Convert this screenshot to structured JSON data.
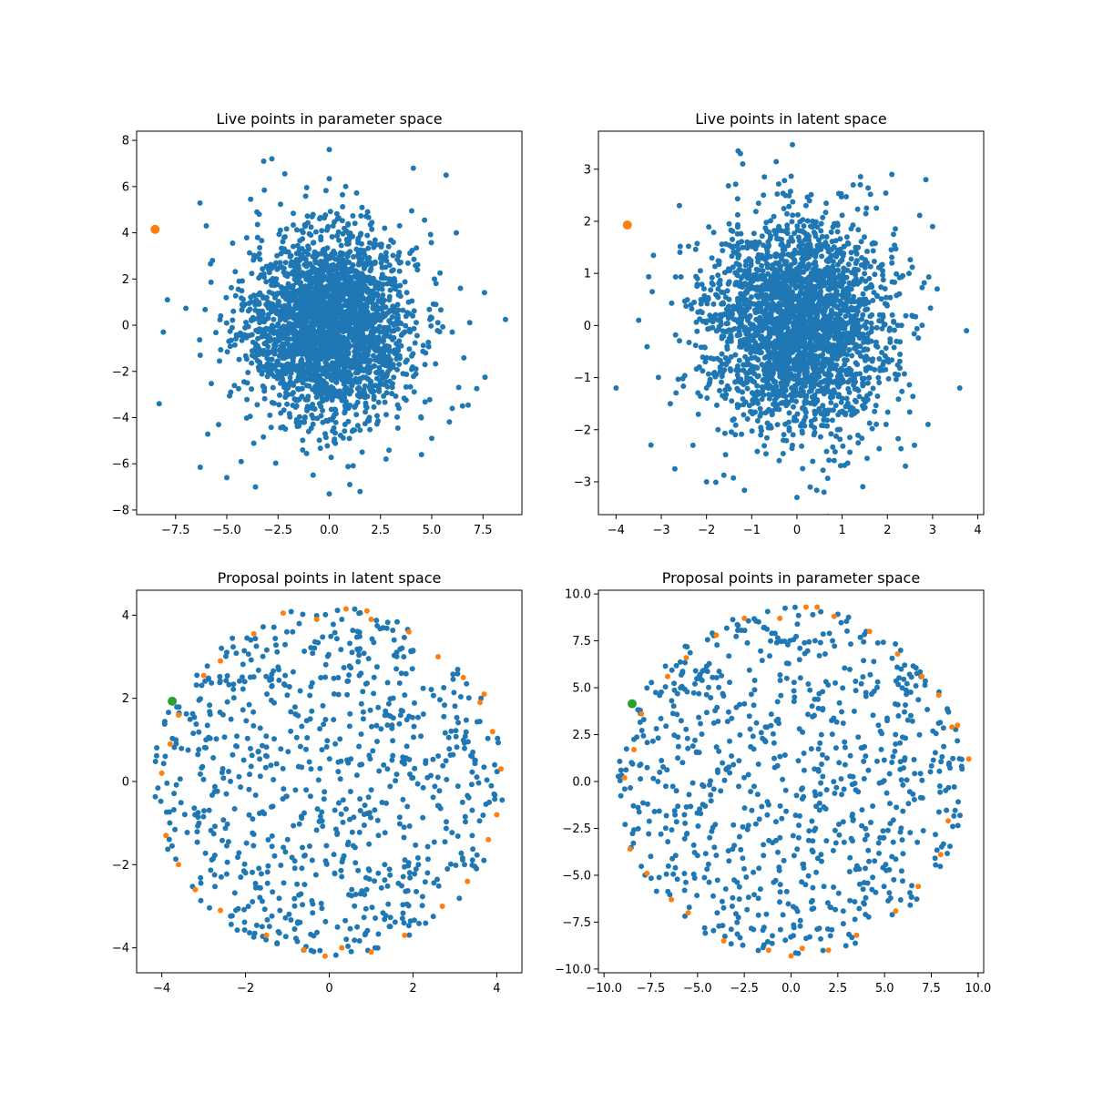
{
  "colors": {
    "live": "#1f77b4",
    "selected": "#ff7f0e",
    "boundary": "#ff7f0e",
    "seed": "#2ca02c"
  },
  "chart_data": [
    {
      "id": "live-param",
      "type": "scatter",
      "title": "Live points in parameter space",
      "xlim": [
        -9.4,
        9.4
      ],
      "ylim": [
        -8.2,
        8.4
      ],
      "xticks": [
        -7.5,
        -5.0,
        -2.5,
        0.0,
        2.5,
        5.0,
        7.5
      ],
      "xtick_labels": [
        "−7.5",
        "−5.0",
        "−2.5",
        "0.0",
        "2.5",
        "5.0",
        "7.5"
      ],
      "yticks": [
        -8,
        -6,
        -4,
        -2,
        0,
        2,
        4,
        6,
        8
      ],
      "ytick_labels": [
        "−8",
        "−6",
        "−4",
        "−2",
        "0",
        "2",
        "4",
        "6",
        "8"
      ],
      "bulk_points": {
        "distribution": "gaussian",
        "count": 2600,
        "mean": [
          0.0,
          0.0
        ],
        "std": [
          2.0,
          2.0
        ]
      },
      "points": [
        {
          "x": 0.5,
          "y": 0.4
        },
        {
          "x": -1.2,
          "y": 1.3
        },
        {
          "x": 1.4,
          "y": -1.1
        },
        {
          "x": -0.3,
          "y": -0.6
        },
        {
          "x": 0.9,
          "y": 1.8
        },
        {
          "x": -2.1,
          "y": -0.4
        },
        {
          "x": 2.3,
          "y": 0.7
        },
        {
          "x": -0.8,
          "y": 2.4
        },
        {
          "x": 0.2,
          "y": -2.2
        },
        {
          "x": 1.7,
          "y": 2.1
        },
        {
          "x": -1.9,
          "y": -1.7
        },
        {
          "x": 2.8,
          "y": -0.9
        },
        {
          "x": -3.0,
          "y": 1.0
        },
        {
          "x": 0.6,
          "y": 3.1
        },
        {
          "x": -0.4,
          "y": -3.0
        },
        {
          "x": 3.2,
          "y": 1.9
        },
        {
          "x": -2.6,
          "y": 2.7
        },
        {
          "x": 2.0,
          "y": -2.8
        },
        {
          "x": -3.4,
          "y": -1.6
        },
        {
          "x": 1.1,
          "y": 0.1
        },
        {
          "x": -1.5,
          "y": 0.3
        },
        {
          "x": 0.0,
          "y": 1.0
        },
        {
          "x": 0.3,
          "y": -1.3
        },
        {
          "x": -0.7,
          "y": 0.8
        },
        {
          "x": 1.3,
          "y": 0.9
        },
        {
          "x": -1.1,
          "y": -1.0
        },
        {
          "x": 2.5,
          "y": 2.9
        },
        {
          "x": -2.2,
          "y": 3.3
        },
        {
          "x": 3.6,
          "y": -2.1
        },
        {
          "x": -3.8,
          "y": 0.2
        },
        {
          "x": 0.8,
          "y": -3.6
        },
        {
          "x": -0.9,
          "y": 3.9
        },
        {
          "x": 3.9,
          "y": 0.5
        },
        {
          "x": -4.0,
          "y": -2.5
        },
        {
          "x": 1.9,
          "y": -4.1
        },
        {
          "x": -1.6,
          "y": -4.2
        },
        {
          "x": 4.3,
          "y": 2.4
        },
        {
          "x": -4.4,
          "y": 1.9
        },
        {
          "x": 0.4,
          "y": 4.6
        },
        {
          "x": -0.2,
          "y": -4.7
        },
        {
          "x": 4.7,
          "y": -1.2
        },
        {
          "x": -4.9,
          "y": -0.7
        },
        {
          "x": 2.7,
          "y": 4.2
        },
        {
          "x": -2.9,
          "y": -3.9
        },
        {
          "x": 3.4,
          "y": -3.6
        },
        {
          "x": -3.5,
          "y": 3.8
        },
        {
          "x": 5.2,
          "y": 0.9
        },
        {
          "x": -5.3,
          "y": 0.4
        },
        {
          "x": 1.6,
          "y": 5.1
        },
        {
          "x": -1.3,
          "y": -5.4
        },
        {
          "x": -8.5,
          "y": 4.15,
          "c": "selected",
          "r": 5
        },
        {
          "x": 0.0,
          "y": 7.6
        },
        {
          "x": -3.2,
          "y": 7.1
        },
        {
          "x": -2.8,
          "y": 7.2
        },
        {
          "x": 4.1,
          "y": 6.8
        },
        {
          "x": 5.7,
          "y": 6.5
        },
        {
          "x": 8.6,
          "y": 0.25
        },
        {
          "x": 7.6,
          "y": -2.25
        },
        {
          "x": -7.9,
          "y": 1.1
        },
        {
          "x": -8.1,
          "y": -0.3
        },
        {
          "x": -8.3,
          "y": -3.4
        },
        {
          "x": 0.0,
          "y": -7.3
        },
        {
          "x": -3.6,
          "y": -7.0
        },
        {
          "x": 1.5,
          "y": -7.2
        },
        {
          "x": 1.0,
          "y": -6.9
        },
        {
          "x": -5.0,
          "y": -6.6
        },
        {
          "x": 6.4,
          "y": 1.6
        },
        {
          "x": 6.5,
          "y": -3.5
        },
        {
          "x": -6.0,
          "y": 4.3
        },
        {
          "x": 6.2,
          "y": 4.0
        },
        {
          "x": -4.3,
          "y": -5.9
        },
        {
          "x": 4.5,
          "y": -5.6
        },
        {
          "x": -5.4,
          "y": -4.3
        },
        {
          "x": 5.0,
          "y": -4.9
        },
        {
          "x": -6.3,
          "y": -1.3
        },
        {
          "x": -5.7,
          "y": 2.8
        },
        {
          "x": 6.0,
          "y": -0.3
        }
      ]
    },
    {
      "id": "live-latent",
      "type": "scatter",
      "title": "Live points in latent space",
      "xlim": [
        -4.39,
        4.13
      ],
      "ylim": [
        -3.63,
        3.73
      ],
      "xticks": [
        -4,
        -3,
        -2,
        -1,
        0,
        1,
        2,
        3,
        4
      ],
      "xtick_labels": [
        "−4",
        "−3",
        "−2",
        "−1",
        "0",
        "1",
        "2",
        "3",
        "4"
      ],
      "yticks": [
        -3,
        -2,
        -1,
        0,
        1,
        2,
        3
      ],
      "ytick_labels": [
        "−3",
        "−2",
        "−1",
        "0",
        "1",
        "2",
        "3"
      ],
      "bulk_points": {
        "distribution": "gaussian",
        "count": 2600,
        "mean": [
          0.0,
          0.0
        ],
        "std": [
          1.0,
          1.0
        ]
      },
      "points": [
        {
          "x": 0.2,
          "y": 0.3
        },
        {
          "x": -0.6,
          "y": 0.7
        },
        {
          "x": 0.7,
          "y": -0.5
        },
        {
          "x": -0.2,
          "y": -0.3
        },
        {
          "x": 0.5,
          "y": 0.9
        },
        {
          "x": -1.0,
          "y": -0.2
        },
        {
          "x": 1.1,
          "y": 0.3
        },
        {
          "x": -0.4,
          "y": 1.2
        },
        {
          "x": 0.1,
          "y": -1.1
        },
        {
          "x": 0.8,
          "y": 1.0
        },
        {
          "x": -0.9,
          "y": -0.8
        },
        {
          "x": 1.4,
          "y": -0.4
        },
        {
          "x": -1.5,
          "y": 0.5
        },
        {
          "x": 0.3,
          "y": 1.5
        },
        {
          "x": -0.2,
          "y": -1.5
        },
        {
          "x": 1.6,
          "y": 0.9
        },
        {
          "x": -1.3,
          "y": 1.3
        },
        {
          "x": 1.0,
          "y": -1.4
        },
        {
          "x": -1.7,
          "y": -0.8
        },
        {
          "x": 0.5,
          "y": 0.0
        },
        {
          "x": -0.7,
          "y": 0.1
        },
        {
          "x": 0.0,
          "y": 0.5
        },
        {
          "x": 0.1,
          "y": -0.6
        },
        {
          "x": -0.3,
          "y": 0.4
        },
        {
          "x": 0.6,
          "y": 0.4
        },
        {
          "x": -0.5,
          "y": -0.5
        },
        {
          "x": 1.2,
          "y": 1.4
        },
        {
          "x": -1.1,
          "y": 1.6
        },
        {
          "x": 1.8,
          "y": -1.0
        },
        {
          "x": -1.9,
          "y": 0.1
        },
        {
          "x": 0.4,
          "y": -1.8
        },
        {
          "x": -0.4,
          "y": 1.9
        },
        {
          "x": 1.9,
          "y": 0.2
        },
        {
          "x": -2.0,
          "y": -1.2
        },
        {
          "x": 0.9,
          "y": -2.0
        },
        {
          "x": -0.8,
          "y": -2.1
        },
        {
          "x": 2.1,
          "y": 1.2
        },
        {
          "x": -2.2,
          "y": 0.9
        },
        {
          "x": 0.2,
          "y": 2.3
        },
        {
          "x": -0.1,
          "y": -2.3
        },
        {
          "x": -3.75,
          "y": 1.93,
          "c": "selected",
          "r": 5
        },
        {
          "x": -0.1,
          "y": 3.47
        },
        {
          "x": -1.3,
          "y": 3.35
        },
        {
          "x": -1.25,
          "y": 3.3
        },
        {
          "x": -1.2,
          "y": 3.1
        },
        {
          "x": 2.85,
          "y": 2.8
        },
        {
          "x": 2.1,
          "y": 2.9
        },
        {
          "x": 3.75,
          "y": -0.1
        },
        {
          "x": 3.6,
          "y": -1.2
        },
        {
          "x": -4.0,
          "y": -1.2
        },
        {
          "x": -3.2,
          "y": 0.65
        },
        {
          "x": -3.5,
          "y": 0.1
        },
        {
          "x": -2.7,
          "y": -2.75
        },
        {
          "x": 0.0,
          "y": -3.3
        },
        {
          "x": -2.0,
          "y": -3.0
        },
        {
          "x": 0.6,
          "y": -3.2
        },
        {
          "x": 2.4,
          "y": -2.7
        },
        {
          "x": 2.9,
          "y": -1.9
        },
        {
          "x": 3.0,
          "y": 1.9
        },
        {
          "x": -2.6,
          "y": 2.3
        },
        {
          "x": 2.6,
          "y": -2.3
        },
        {
          "x": -2.8,
          "y": -1.5
        },
        {
          "x": 3.1,
          "y": 0.7
        },
        {
          "x": -2.3,
          "y": -2.3
        },
        {
          "x": 1.4,
          "y": 2.7
        }
      ]
    },
    {
      "id": "proposal-latent",
      "type": "scatter",
      "title": "Proposal points in latent space",
      "xlim": [
        -4.6,
        4.6
      ],
      "ylim": [
        -4.6,
        4.6
      ],
      "xticks": [
        -4,
        -2,
        0,
        2,
        4
      ],
      "xtick_labels": [
        "−4",
        "−2",
        "0",
        "2",
        "4"
      ],
      "yticks": [
        -4,
        -2,
        0,
        2,
        4
      ],
      "ytick_labels": [
        "−4",
        "−2",
        "0",
        "2",
        "4"
      ],
      "bulk_points": {
        "distribution": "uniform-disk",
        "count": 800,
        "center": [
          0.0,
          0.0
        ],
        "radius": 4.2
      },
      "points": [
        {
          "x": 3.9,
          "y": 1.2,
          "c": "boundary"
        },
        {
          "x": 3.6,
          "y": 1.9,
          "c": "boundary"
        },
        {
          "x": 3.2,
          "y": 2.5,
          "c": "boundary"
        },
        {
          "x": 2.6,
          "y": 3.0,
          "c": "boundary"
        },
        {
          "x": 1.9,
          "y": 3.6,
          "c": "boundary"
        },
        {
          "x": 1.0,
          "y": 3.9,
          "c": "boundary"
        },
        {
          "x": 0.4,
          "y": 4.15,
          "c": "boundary"
        },
        {
          "x": 0.9,
          "y": 4.1,
          "c": "boundary"
        },
        {
          "x": -0.3,
          "y": 3.9,
          "c": "boundary"
        },
        {
          "x": -1.1,
          "y": 4.05,
          "c": "boundary"
        },
        {
          "x": -1.8,
          "y": 3.55,
          "c": "boundary"
        },
        {
          "x": -2.6,
          "y": 2.9,
          "c": "boundary"
        },
        {
          "x": -3.0,
          "y": 2.55,
          "c": "boundary"
        },
        {
          "x": -3.6,
          "y": 1.6,
          "c": "boundary"
        },
        {
          "x": -3.8,
          "y": 0.9,
          "c": "boundary"
        },
        {
          "x": -4.0,
          "y": 0.2,
          "c": "boundary"
        },
        {
          "x": -3.9,
          "y": -1.3,
          "c": "boundary"
        },
        {
          "x": -3.6,
          "y": -2.0,
          "c": "boundary"
        },
        {
          "x": -3.2,
          "y": -2.6,
          "c": "boundary"
        },
        {
          "x": -2.6,
          "y": -3.1,
          "c": "boundary"
        },
        {
          "x": -1.5,
          "y": -3.7,
          "c": "boundary"
        },
        {
          "x": -0.6,
          "y": -4.05,
          "c": "boundary"
        },
        {
          "x": -0.1,
          "y": -4.2,
          "c": "boundary"
        },
        {
          "x": 0.3,
          "y": -4.0,
          "c": "boundary"
        },
        {
          "x": 1.0,
          "y": -4.1,
          "c": "boundary"
        },
        {
          "x": 1.8,
          "y": -3.7,
          "c": "boundary"
        },
        {
          "x": 2.7,
          "y": -3.0,
          "c": "boundary"
        },
        {
          "x": 3.3,
          "y": -2.4,
          "c": "boundary"
        },
        {
          "x": 3.8,
          "y": -1.4,
          "c": "boundary"
        },
        {
          "x": 4.0,
          "y": -0.8,
          "c": "boundary"
        },
        {
          "x": 4.1,
          "y": 0.3,
          "c": "boundary"
        },
        {
          "x": 3.7,
          "y": 2.1,
          "c": "boundary"
        },
        {
          "x": -3.75,
          "y": 1.93,
          "c": "seed",
          "r": 5
        }
      ]
    },
    {
      "id": "proposal-param",
      "type": "scatter",
      "title": "Proposal points in parameter space",
      "xlim": [
        -10.3,
        10.3
      ],
      "ylim": [
        -10.2,
        10.2
      ],
      "xticks": [
        -10.0,
        -7.5,
        -5.0,
        -2.5,
        0.0,
        2.5,
        5.0,
        7.5,
        10.0
      ],
      "xtick_labels": [
        "−10.0",
        "−7.5",
        "−5.0",
        "−2.5",
        "0.0",
        "2.5",
        "5.0",
        "7.5",
        "10.0"
      ],
      "yticks": [
        -10.0,
        -7.5,
        -5.0,
        -2.5,
        0.0,
        2.5,
        5.0,
        7.5,
        10.0
      ],
      "ytick_labels": [
        "−10.0",
        "−7.5",
        "−5.0",
        "−2.5",
        "0.0",
        "2.5",
        "5.0",
        "7.5",
        "10.0"
      ],
      "bulk_points": {
        "distribution": "uniform-disk",
        "count": 800,
        "center": [
          0.0,
          0.0
        ],
        "radius": 9.3
      },
      "points": [
        {
          "x": 8.6,
          "y": 2.9,
          "c": "boundary"
        },
        {
          "x": 7.9,
          "y": 4.6,
          "c": "boundary"
        },
        {
          "x": 7.0,
          "y": 5.6,
          "c": "boundary"
        },
        {
          "x": 5.7,
          "y": 6.8,
          "c": "boundary"
        },
        {
          "x": 4.2,
          "y": 8.0,
          "c": "boundary"
        },
        {
          "x": 2.3,
          "y": 8.8,
          "c": "boundary"
        },
        {
          "x": 0.8,
          "y": 9.3,
          "c": "boundary"
        },
        {
          "x": 1.4,
          "y": 9.3,
          "c": "boundary"
        },
        {
          "x": -0.6,
          "y": 8.7,
          "c": "boundary"
        },
        {
          "x": -2.5,
          "y": 8.7,
          "c": "boundary"
        },
        {
          "x": -4.0,
          "y": 7.8,
          "c": "boundary"
        },
        {
          "x": -5.6,
          "y": 6.6,
          "c": "boundary"
        },
        {
          "x": -6.6,
          "y": 5.6,
          "c": "boundary"
        },
        {
          "x": -8.0,
          "y": 3.6,
          "c": "boundary"
        },
        {
          "x": -8.4,
          "y": 1.7,
          "c": "boundary"
        },
        {
          "x": -8.9,
          "y": 0.2,
          "c": "boundary"
        },
        {
          "x": -8.6,
          "y": -3.6,
          "c": "boundary"
        },
        {
          "x": -7.7,
          "y": -4.9,
          "c": "boundary"
        },
        {
          "x": -6.4,
          "y": -6.3,
          "c": "boundary"
        },
        {
          "x": -5.5,
          "y": -7.0,
          "c": "boundary"
        },
        {
          "x": -3.6,
          "y": -8.5,
          "c": "boundary"
        },
        {
          "x": -1.2,
          "y": -9.0,
          "c": "boundary"
        },
        {
          "x": 0.0,
          "y": -9.3,
          "c": "boundary"
        },
        {
          "x": 0.6,
          "y": -8.9,
          "c": "boundary"
        },
        {
          "x": 2.0,
          "y": -9.0,
          "c": "boundary"
        },
        {
          "x": 3.5,
          "y": -8.2,
          "c": "boundary"
        },
        {
          "x": 5.6,
          "y": -6.9,
          "c": "boundary"
        },
        {
          "x": 6.8,
          "y": -5.6,
          "c": "boundary"
        },
        {
          "x": 8.0,
          "y": -3.9,
          "c": "boundary"
        },
        {
          "x": 8.4,
          "y": -2.1,
          "c": "boundary"
        },
        {
          "x": 9.5,
          "y": 1.2,
          "c": "boundary"
        },
        {
          "x": 8.9,
          "y": 3.0,
          "c": "boundary"
        },
        {
          "x": -8.5,
          "y": 4.15,
          "c": "seed",
          "r": 5
        }
      ]
    }
  ]
}
